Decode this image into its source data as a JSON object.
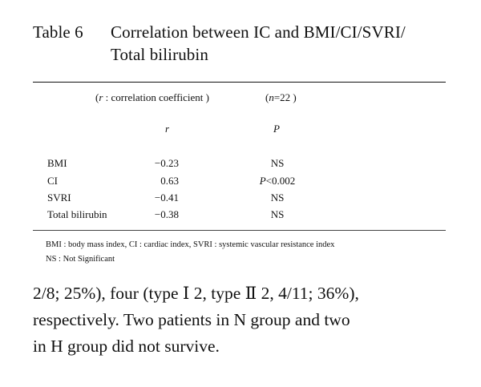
{
  "caption": {
    "label": "Table 6",
    "title_line1": "Correlation between IC and BMI/CI/SVRI/",
    "title_line2": "Total bilirubin"
  },
  "table": {
    "note_r_open": "(",
    "note_r_symbol": "r",
    "note_r_text": " : correlation coefficient )",
    "note_n_open": "(",
    "note_n_symbol": "n",
    "note_n_text": "=22 )",
    "col_r": "r",
    "col_p": "P",
    "rows": [
      {
        "label": "BMI",
        "r": "−0.23",
        "p": "NS"
      },
      {
        "label": "CI",
        "r": "0.63",
        "p_prefix": "P",
        "p": "<0.002"
      },
      {
        "label": "SVRI",
        "r": "−0.41",
        "p": "NS"
      },
      {
        "label": "Total  bilirubin",
        "r": "−0.38",
        "p": "NS"
      }
    ],
    "footnotes": [
      "BMI : body mass index,  CI : cardiac index,  SVRI : systemic  vascular  resistance  index",
      "NS   :  Not  Significant"
    ]
  },
  "body_text": {
    "lines": [
      "2/8; 25%), four (type  Ⅰ  2, type  Ⅱ  2, 4/11; 36%),",
      "respectively. Two patients in N group and two",
      "in H group did not survive."
    ]
  }
}
